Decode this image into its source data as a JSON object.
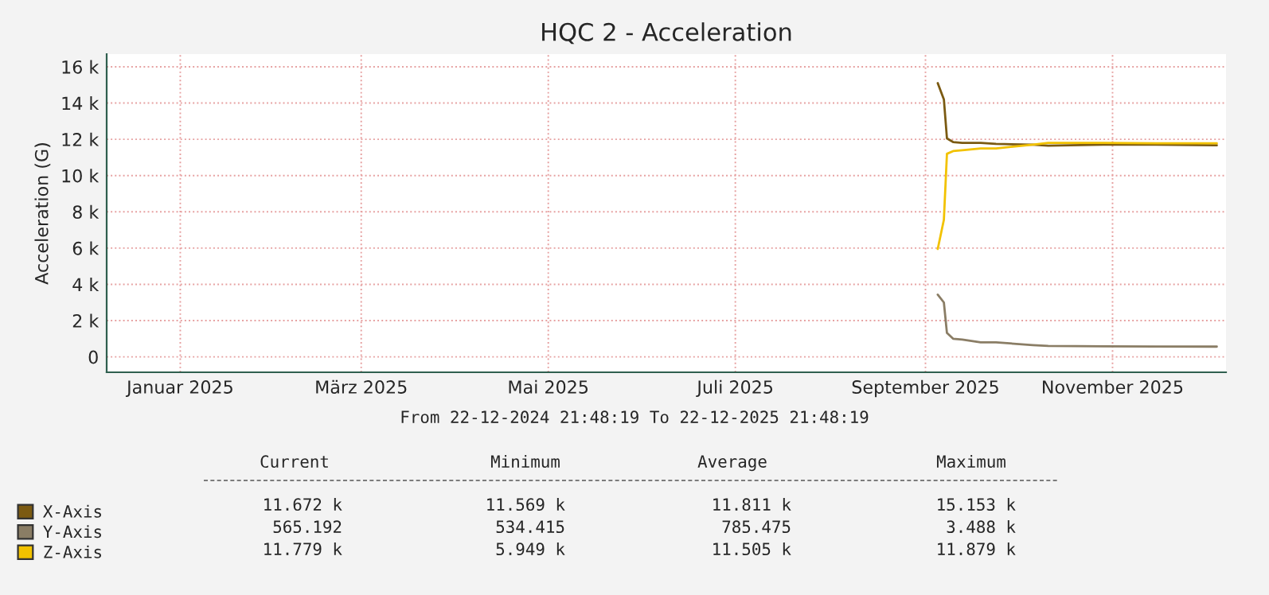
{
  "chart_data": {
    "type": "line",
    "title": "HQC 2 - Acceleration",
    "ylabel": "Acceleration (G)",
    "ylim": [
      -850,
      16700
    ],
    "yticks": [
      {
        "value": 0,
        "label": "0"
      },
      {
        "value": 2000,
        "label": "2 k"
      },
      {
        "value": 4000,
        "label": "4 k"
      },
      {
        "value": 6000,
        "label": "6 k"
      },
      {
        "value": 8000,
        "label": "8 k"
      },
      {
        "value": 10000,
        "label": "10 k"
      },
      {
        "value": 12000,
        "label": "12 k"
      },
      {
        "value": 14000,
        "label": "14 k"
      },
      {
        "value": 16000,
        "label": "16 k"
      }
    ],
    "xlim": [
      "2024-12-22",
      "2025-12-22"
    ],
    "xticks": [
      {
        "value": "2025-01-15",
        "label": "Januar 2025"
      },
      {
        "value": "2025-03-15",
        "label": "März 2025"
      },
      {
        "value": "2025-05-15",
        "label": "Mai 2025"
      },
      {
        "value": "2025-07-15",
        "label": "Juli 2025"
      },
      {
        "value": "2025-09-15",
        "label": "September 2025"
      },
      {
        "value": "2025-11-15",
        "label": "November 2025"
      }
    ],
    "x": [
      "2025-09-19",
      "2025-09-21",
      "2025-09-22",
      "2025-09-24",
      "2025-09-27",
      "2025-10-03",
      "2025-10-08",
      "2025-10-20",
      "2025-10-25",
      "2025-11-12",
      "2025-11-29",
      "2025-12-19"
    ],
    "series": [
      {
        "name": "X-Axis",
        "color": "#7b5a12",
        "values": [
          15100,
          14200,
          12050,
          11850,
          11800,
          11800,
          11750,
          11700,
          11650,
          11700,
          11700,
          11670
        ]
      },
      {
        "name": "Y-Axis",
        "color": "#8a7d65",
        "values": [
          3430,
          3000,
          1320,
          1000,
          950,
          800,
          800,
          650,
          600,
          580,
          570,
          565
        ]
      },
      {
        "name": "Z-Axis",
        "color": "#f2c200",
        "values": [
          5950,
          7560,
          11200,
          11350,
          11400,
          11500,
          11500,
          11700,
          11800,
          11800,
          11780,
          11780
        ]
      }
    ],
    "grid": true,
    "legend": "bottom left",
    "line_style": "solid",
    "annotations": [
      "From 22-12-2024 21:48:19 To 22-12-2025 21:48:19",
      "Current",
      "Minimum",
      "Average",
      "Maximum",
      "11.672 k",
      "11.569 k",
      "11.811 k",
      "15.153 k",
      "565.192",
      "534.415",
      "785.475",
      "3.488 k",
      "11.779 k",
      "5.949 k",
      "11.505 k",
      "11.879 k"
    ]
  }
}
